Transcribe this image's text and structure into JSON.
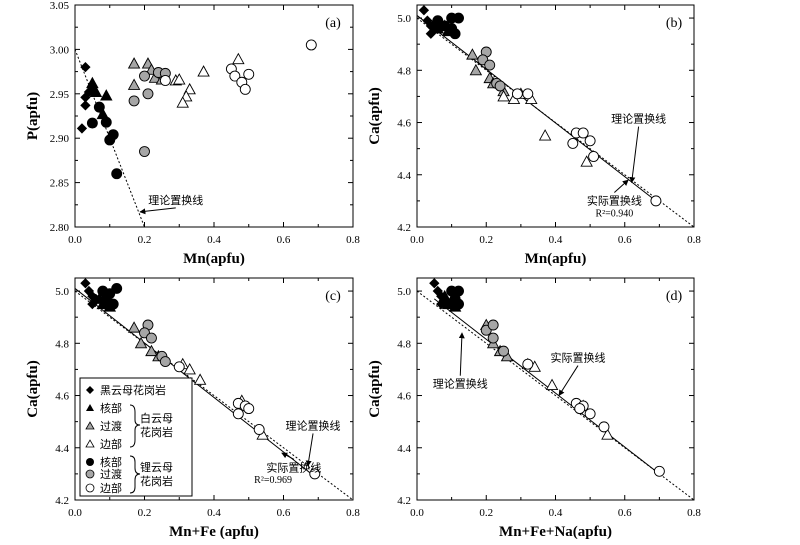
{
  "colors": {
    "axis": "#000000",
    "black": "#000000",
    "gray": "#a6a6a6",
    "white": "#ffffff"
  },
  "legend": {
    "items": [
      "黑云母花岗岩",
      "核部",
      "过渡",
      "边部",
      "核部",
      "过渡",
      "边部"
    ],
    "groups": [
      "白云母",
      "花岗岩",
      "锂云母",
      "花岗岩"
    ]
  },
  "chart_data": [
    {
      "panel": "(a)",
      "type": "scatter",
      "xlabel": "Mn(apfu)",
      "ylabel": "P(apfu)",
      "xlim": [
        0.0,
        0.8
      ],
      "ylim": [
        2.8,
        3.05
      ],
      "xticks": [
        "0.0",
        "0.2",
        "0.4",
        "0.6",
        "0.8"
      ],
      "yticks": [
        "2.80",
        "2.85",
        "2.90",
        "2.95",
        "3.00",
        "3.05"
      ],
      "lines": [
        {
          "label": "理论置换线",
          "style": "dotted",
          "points": [
            [
              0.0,
              3.0
            ],
            [
              0.2,
              2.8
            ]
          ]
        }
      ],
      "annotations": [
        {
          "text": "理论置换线",
          "x": 0.29,
          "y": 2.826,
          "arrow_to": [
            0.187,
            2.817
          ]
        }
      ],
      "series": [
        {
          "name": "黑云母花岗岩",
          "marker": "diamond",
          "fill": "black",
          "points": [
            [
              0.03,
              2.98
            ],
            [
              0.03,
              2.946
            ],
            [
              0.04,
              2.952
            ],
            [
              0.05,
              2.955
            ],
            [
              0.03,
              2.937
            ],
            [
              0.02,
              2.911
            ]
          ]
        },
        {
          "name": "白云母花岗岩-核部",
          "marker": "triangle",
          "fill": "black",
          "points": [
            [
              0.05,
              2.962
            ],
            [
              0.06,
              2.952
            ],
            [
              0.09,
              2.948
            ],
            [
              0.08,
              2.927
            ]
          ]
        },
        {
          "name": "白云母花岗岩-过渡",
          "marker": "triangle",
          "fill": "gray",
          "points": [
            [
              0.17,
              2.984
            ],
            [
              0.21,
              2.984
            ],
            [
              0.22,
              2.977
            ],
            [
              0.23,
              2.968
            ],
            [
              0.25,
              2.966
            ],
            [
              0.17,
              2.96
            ]
          ]
        },
        {
          "name": "白云母花岗岩-边部",
          "marker": "triangle",
          "fill": "white",
          "points": [
            [
              0.47,
              2.989
            ],
            [
              0.37,
              2.975
            ],
            [
              0.29,
              2.965
            ],
            [
              0.3,
              2.966
            ],
            [
              0.33,
              2.955
            ],
            [
              0.32,
              2.947
            ],
            [
              0.31,
              2.94
            ]
          ]
        },
        {
          "name": "锂云母花岗岩-核部",
          "marker": "circle",
          "fill": "black",
          "points": [
            [
              0.07,
              2.935
            ],
            [
              0.05,
              2.917
            ],
            [
              0.09,
              2.918
            ],
            [
              0.11,
              2.904
            ],
            [
              0.1,
              2.898
            ],
            [
              0.12,
              2.86
            ]
          ]
        },
        {
          "name": "锂云母花岗岩-过渡",
          "marker": "circle",
          "fill": "gray",
          "points": [
            [
              0.2,
              2.97
            ],
            [
              0.24,
              2.974
            ],
            [
              0.26,
              2.973
            ],
            [
              0.21,
              2.95
            ],
            [
              0.17,
              2.942
            ],
            [
              0.2,
              2.885
            ]
          ]
        },
        {
          "name": "锂云母花岗岩-边部",
          "marker": "circle",
          "fill": "white",
          "points": [
            [
              0.68,
              3.005
            ],
            [
              0.45,
              2.978
            ],
            [
              0.5,
              2.972
            ],
            [
              0.46,
              2.97
            ],
            [
              0.48,
              2.963
            ],
            [
              0.49,
              2.955
            ],
            [
              0.26,
              2.965
            ]
          ]
        }
      ]
    },
    {
      "panel": "(b)",
      "type": "scatter",
      "xlabel": "Mn(apfu)",
      "ylabel": "Ca(apfu)",
      "xlim": [
        0.0,
        0.8
      ],
      "ylim": [
        4.2,
        5.05
      ],
      "xticks": [
        "0.0",
        "0.2",
        "0.4",
        "0.6",
        "0.8"
      ],
      "yticks": [
        "4.2",
        "4.4",
        "4.6",
        "4.8",
        "5.0"
      ],
      "lines": [
        {
          "label": "理论置换线",
          "style": "dotted",
          "points": [
            [
              0.0,
              5.0
            ],
            [
              0.8,
              4.2
            ]
          ]
        },
        {
          "label": "实际置换线",
          "style": "solid",
          "points": [
            [
              0.0,
              5.01
            ],
            [
              0.69,
              4.3
            ]
          ]
        }
      ],
      "annotations": [
        {
          "text": "理论置换线",
          "x": 0.64,
          "y": 4.6,
          "arrow_to": [
            0.62,
            4.37
          ]
        },
        {
          "text": "实际置换线",
          "x": 0.57,
          "y": 4.286,
          "arrow_to": [
            0.61,
            4.38
          ]
        },
        {
          "text": "R²=0.940",
          "x": 0.57,
          "y": 4.24
        }
      ],
      "series": [
        {
          "name": "黑云母花岗岩",
          "marker": "diamond",
          "fill": "black",
          "points": [
            [
              0.02,
              5.03
            ],
            [
              0.03,
              4.99
            ],
            [
              0.04,
              4.97
            ],
            [
              0.04,
              4.94
            ],
            [
              0.05,
              4.96
            ]
          ]
        },
        {
          "name": "白云母花岗岩-核部",
          "marker": "triangle",
          "fill": "black",
          "points": [
            [
              0.05,
              4.98
            ],
            [
              0.06,
              4.96
            ],
            [
              0.08,
              4.97
            ],
            [
              0.09,
              4.95
            ]
          ]
        },
        {
          "name": "白云母花岗岩-过渡",
          "marker": "triangle",
          "fill": "gray",
          "points": [
            [
              0.16,
              4.86
            ],
            [
              0.17,
              4.8
            ],
            [
              0.21,
              4.77
            ],
            [
              0.22,
              4.75
            ],
            [
              0.25,
              4.72
            ]
          ]
        },
        {
          "name": "白云母花岗岩-边部",
          "marker": "triangle",
          "fill": "white",
          "points": [
            [
              0.25,
              4.7
            ],
            [
              0.28,
              4.69
            ],
            [
              0.3,
              4.71
            ],
            [
              0.33,
              4.69
            ],
            [
              0.37,
              4.55
            ],
            [
              0.49,
              4.45
            ]
          ]
        },
        {
          "name": "锂云母花岗岩-核部",
          "marker": "circle",
          "fill": "black",
          "points": [
            [
              0.06,
              4.99
            ],
            [
              0.1,
              5.0
            ],
            [
              0.12,
              5.0
            ],
            [
              0.08,
              4.97
            ],
            [
              0.1,
              4.96
            ],
            [
              0.11,
              4.94
            ]
          ]
        },
        {
          "name": "锂云母花岗岩-过渡",
          "marker": "circle",
          "fill": "gray",
          "points": [
            [
              0.2,
              4.87
            ],
            [
              0.19,
              4.84
            ],
            [
              0.21,
              4.82
            ],
            [
              0.23,
              4.75
            ],
            [
              0.24,
              4.74
            ]
          ]
        },
        {
          "name": "锂云母花岗岩-边部",
          "marker": "circle",
          "fill": "white",
          "points": [
            [
              0.29,
              4.71
            ],
            [
              0.32,
              4.71
            ],
            [
              0.46,
              4.56
            ],
            [
              0.48,
              4.56
            ],
            [
              0.5,
              4.53
            ],
            [
              0.45,
              4.52
            ],
            [
              0.51,
              4.47
            ],
            [
              0.69,
              4.3
            ]
          ]
        }
      ]
    },
    {
      "panel": "(c)",
      "type": "scatter",
      "xlabel": "Mn+Fe (apfu)",
      "ylabel": "Ca(apfu)",
      "xlim": [
        0.0,
        0.8
      ],
      "ylim": [
        4.2,
        5.05
      ],
      "xticks": [
        "0.0",
        "0.2",
        "0.4",
        "0.6",
        "0.8"
      ],
      "yticks": [
        "4.2",
        "4.4",
        "4.6",
        "4.8",
        "5.0"
      ],
      "lines": [
        {
          "label": "理论置换线",
          "style": "dotted",
          "points": [
            [
              0.0,
              5.0
            ],
            [
              0.8,
              4.2
            ]
          ]
        },
        {
          "label": "实际置换线",
          "style": "solid",
          "points": [
            [
              0.0,
              5.01
            ],
            [
              0.69,
              4.29
            ]
          ]
        }
      ],
      "annotations": [
        {
          "text": "理论置换线",
          "x": 0.685,
          "y": 4.47,
          "arrow_to": [
            0.67,
            4.33
          ]
        },
        {
          "text": "实际置换线",
          "x": 0.63,
          "y": 4.31,
          "arrow_to": [
            0.595,
            4.38
          ]
        },
        {
          "text": "R²=0.969",
          "x": 0.57,
          "y": 4.265
        }
      ],
      "series": [
        {
          "name": "黑云母花岗岩",
          "marker": "diamond",
          "fill": "black",
          "points": [
            [
              0.03,
              5.03
            ],
            [
              0.04,
              5.0
            ],
            [
              0.05,
              4.98
            ],
            [
              0.05,
              4.95
            ],
            [
              0.06,
              4.97
            ]
          ]
        },
        {
          "name": "白云母花岗岩-核部",
          "marker": "triangle",
          "fill": "black",
          "points": [
            [
              0.07,
              4.97
            ],
            [
              0.08,
              4.95
            ],
            [
              0.09,
              4.96
            ],
            [
              0.1,
              4.94
            ]
          ]
        },
        {
          "name": "白云母花岗岩-过渡",
          "marker": "triangle",
          "fill": "gray",
          "points": [
            [
              0.17,
              4.86
            ],
            [
              0.19,
              4.8
            ],
            [
              0.22,
              4.77
            ],
            [
              0.24,
              4.75
            ]
          ]
        },
        {
          "name": "白云母花岗岩-边部",
          "marker": "triangle",
          "fill": "white",
          "points": [
            [
              0.31,
              4.72
            ],
            [
              0.33,
              4.7
            ],
            [
              0.36,
              4.66
            ],
            [
              0.48,
              4.58
            ],
            [
              0.54,
              4.45
            ]
          ]
        },
        {
          "name": "锂云母花岗岩-核部",
          "marker": "circle",
          "fill": "black",
          "points": [
            [
              0.08,
              5.0
            ],
            [
              0.1,
              4.99
            ],
            [
              0.12,
              5.01
            ],
            [
              0.09,
              4.97
            ],
            [
              0.11,
              4.95
            ]
          ]
        },
        {
          "name": "锂云母花岗岩-过渡",
          "marker": "circle",
          "fill": "gray",
          "points": [
            [
              0.21,
              4.87
            ],
            [
              0.2,
              4.84
            ],
            [
              0.22,
              4.82
            ],
            [
              0.25,
              4.75
            ],
            [
              0.26,
              4.73
            ]
          ]
        },
        {
          "name": "锂云母花岗岩-边部",
          "marker": "circle",
          "fill": "white",
          "points": [
            [
              0.3,
              4.71
            ],
            [
              0.47,
              4.57
            ],
            [
              0.49,
              4.56
            ],
            [
              0.5,
              4.55
            ],
            [
              0.47,
              4.53
            ],
            [
              0.53,
              4.47
            ],
            [
              0.69,
              4.3
            ]
          ]
        }
      ]
    },
    {
      "panel": "(d)",
      "type": "scatter",
      "xlabel": "Mn+Fe+Na(apfu)",
      "ylabel": "Ca(apfu)",
      "xlim": [
        0.0,
        0.8
      ],
      "ylim": [
        4.2,
        5.05
      ],
      "xticks": [
        "0.0",
        "0.2",
        "0.4",
        "0.6",
        "0.8"
      ],
      "yticks": [
        "4.2",
        "4.4",
        "4.6",
        "4.8",
        "5.0"
      ],
      "lines": [
        {
          "label": "理论置换线",
          "style": "dotted",
          "points": [
            [
              0.0,
              5.0
            ],
            [
              0.8,
              4.2
            ]
          ]
        },
        {
          "label": "实际置换线",
          "style": "solid",
          "points": [
            [
              0.05,
              4.97
            ],
            [
              0.7,
              4.3
            ]
          ]
        }
      ],
      "annotations": [
        {
          "text": "理论置换线",
          "x": 0.125,
          "y": 4.63,
          "arrow_to": [
            0.13,
            4.84
          ]
        },
        {
          "text": "实际置换线",
          "x": 0.465,
          "y": 4.73,
          "arrow_to": [
            0.41,
            4.6
          ]
        }
      ],
      "series": [
        {
          "name": "黑云母花岗岩",
          "marker": "diamond",
          "fill": "black",
          "points": [
            [
              0.05,
              5.03
            ],
            [
              0.06,
              5.0
            ],
            [
              0.07,
              4.98
            ],
            [
              0.07,
              4.95
            ],
            [
              0.08,
              4.97
            ]
          ]
        },
        {
          "name": "白云母花岗岩-核部",
          "marker": "triangle",
          "fill": "black",
          "points": [
            [
              0.08,
              4.98
            ],
            [
              0.09,
              4.95
            ],
            [
              0.1,
              4.96
            ],
            [
              0.11,
              4.94
            ]
          ]
        },
        {
          "name": "白云母花岗岩-过渡",
          "marker": "triangle",
          "fill": "gray",
          "points": [
            [
              0.2,
              4.87
            ],
            [
              0.22,
              4.8
            ],
            [
              0.24,
              4.77
            ],
            [
              0.26,
              4.75
            ]
          ]
        },
        {
          "name": "白云母花岗岩-边部",
          "marker": "triangle",
          "fill": "white",
          "points": [
            [
              0.32,
              4.72
            ],
            [
              0.34,
              4.71
            ],
            [
              0.39,
              4.64
            ],
            [
              0.48,
              4.56
            ],
            [
              0.55,
              4.45
            ]
          ]
        },
        {
          "name": "锂云母花岗岩-核部",
          "marker": "circle",
          "fill": "black",
          "points": [
            [
              0.1,
              5.0
            ],
            [
              0.12,
              5.0
            ],
            [
              0.11,
              4.97
            ],
            [
              0.12,
              4.95
            ]
          ]
        },
        {
          "name": "锂云母花岗岩-过渡",
          "marker": "circle",
          "fill": "gray",
          "points": [
            [
              0.2,
              4.85
            ],
            [
              0.22,
              4.87
            ],
            [
              0.22,
              4.82
            ],
            [
              0.25,
              4.77
            ]
          ]
        },
        {
          "name": "锂云母花岗岩-边部",
          "marker": "circle",
          "fill": "white",
          "points": [
            [
              0.32,
              4.72
            ],
            [
              0.46,
              4.57
            ],
            [
              0.48,
              4.56
            ],
            [
              0.5,
              4.53
            ],
            [
              0.47,
              4.55
            ],
            [
              0.54,
              4.48
            ],
            [
              0.7,
              4.31
            ]
          ]
        }
      ]
    }
  ]
}
